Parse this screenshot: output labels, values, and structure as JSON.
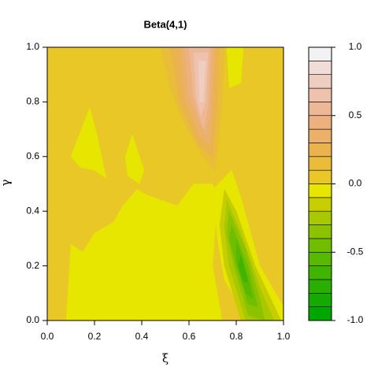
{
  "chart_data": {
    "type": "filled_contour",
    "title": "Beta(4,1)",
    "x_label": "ξ",
    "y_label": "γ",
    "xlim": [
      0,
      1
    ],
    "ylim": [
      0,
      1
    ],
    "xticks": [
      {
        "value": 0,
        "label": "0.0"
      },
      {
        "value": 0.2,
        "label": "0.2"
      },
      {
        "value": 0.4,
        "label": "0.4"
      },
      {
        "value": 0.6,
        "label": "0.6"
      },
      {
        "value": 0.8,
        "label": "0.8"
      },
      {
        "value": 1,
        "label": "1.0"
      }
    ],
    "yticks": [
      {
        "value": 0,
        "label": "0.0"
      },
      {
        "value": 0.2,
        "label": "0.2"
      },
      {
        "value": 0.4,
        "label": "0.4"
      },
      {
        "value": 0.6,
        "label": "0.6"
      },
      {
        "value": 0.8,
        "label": "0.8"
      },
      {
        "value": 1,
        "label": "1.0"
      }
    ],
    "zlim": [
      -1,
      1
    ],
    "zticks": [
      {
        "value": -1,
        "label": "-1.0"
      },
      {
        "value": -0.5,
        "label": "-0.5"
      },
      {
        "value": 0,
        "label": "0.0"
      },
      {
        "value": 0.5,
        "label": "0.5"
      },
      {
        "value": 1,
        "label": "1.0"
      }
    ],
    "zlevels": [
      -1.0,
      -0.9,
      -0.8,
      -0.7,
      -0.6,
      -0.5,
      -0.4,
      -0.3,
      -0.2,
      -0.1,
      0.0,
      0.1,
      0.2,
      0.3,
      0.4,
      0.5,
      0.6,
      0.7,
      0.8,
      0.9,
      1.0
    ],
    "colors": [
      "#00A600",
      "#14AA00",
      "#2AAF00",
      "#40B400",
      "#58B900",
      "#71BE00",
      "#8CC300",
      "#A8C800",
      "#C6CE00",
      "#E6E600",
      "#E8C727",
      "#E9BD3A",
      "#EAB34E",
      "#EBB06A",
      "#ECB17F",
      "#EDB896",
      "#EEC2AC",
      "#EFCEC2",
      "#F0DDD8",
      "#F2F2F2"
    ],
    "regions": [
      {
        "level": 0.0,
        "x": [
          0,
          1,
          1,
          0
        ],
        "y": [
          0,
          0,
          1,
          1
        ]
      },
      {
        "level": -0.1,
        "x": [
          0.08,
          0.1,
          0.15,
          0.2,
          0.28,
          0.32,
          0.38,
          0.42,
          0.55,
          0.62,
          0.7,
          0.72,
          0.7,
          0.74,
          0.42
        ],
        "y": [
          0,
          0.28,
          0.25,
          0.32,
          0.36,
          0.42,
          0.48,
          0.46,
          0.42,
          0.5,
          0.5,
          0.45,
          0.2,
          0,
          0
        ]
      },
      {
        "level": -0.1,
        "x": [
          0.1,
          0.18,
          0.21,
          0.25,
          0.2,
          0.14
        ],
        "y": [
          0.6,
          0.78,
          0.68,
          0.52,
          0.55,
          0.56
        ]
      },
      {
        "level": -0.1,
        "x": [
          0.33,
          0.36,
          0.41,
          0.39,
          0.34
        ],
        "y": [
          0.6,
          0.68,
          0.55,
          0.5,
          0.53
        ]
      },
      {
        "level": -0.1,
        "x": [
          0.76,
          0.83,
          0.82,
          0.77
        ],
        "y": [
          1,
          1,
          0.87,
          0.85
        ]
      },
      {
        "level": -0.1,
        "x": [
          0.7,
          0.78,
          0.82,
          0.9,
          1,
          1,
          0.85,
          0.75,
          0.72
        ],
        "y": [
          0.48,
          0.55,
          0.45,
          0.2,
          0.05,
          0,
          0,
          0.15,
          0.3
        ]
      },
      {
        "level": -0.2,
        "x": [
          0.75,
          0.8,
          0.88,
          0.99,
          0.82,
          0.75,
          0.73
        ],
        "y": [
          0.48,
          0.4,
          0.2,
          0,
          0,
          0.2,
          0.35
        ]
      },
      {
        "level": -0.3,
        "x": [
          0.76,
          0.82,
          0.9,
          0.96,
          0.84,
          0.77,
          0.75
        ],
        "y": [
          0.44,
          0.32,
          0.12,
          0,
          0,
          0.2,
          0.34
        ]
      },
      {
        "level": -0.4,
        "x": [
          0.77,
          0.84,
          0.9,
          0.92,
          0.85,
          0.79,
          0.76
        ],
        "y": [
          0.4,
          0.26,
          0.08,
          0,
          0.02,
          0.2,
          0.32
        ]
      },
      {
        "level": -0.5,
        "x": [
          0.78,
          0.85,
          0.89,
          0.85,
          0.8,
          0.77
        ],
        "y": [
          0.35,
          0.2,
          0.05,
          0.06,
          0.2,
          0.3
        ]
      },
      {
        "level": -0.6,
        "x": [
          0.8,
          0.85,
          0.87,
          0.84,
          0.8
        ],
        "y": [
          0.3,
          0.16,
          0.08,
          0.1,
          0.22
        ]
      },
      {
        "level": -0.7,
        "x": [
          0.82,
          0.85,
          0.83,
          0.81
        ],
        "y": [
          0.24,
          0.14,
          0.14,
          0.2
        ]
      },
      {
        "level": 0.1,
        "x": [
          0.48,
          0.75,
          0.74,
          0.72,
          0.71,
          0.66,
          0.58,
          0.52
        ],
        "y": [
          1,
          1,
          0.8,
          0.62,
          0.55,
          0.6,
          0.72,
          0.85
        ]
      },
      {
        "level": 0.2,
        "x": [
          0.52,
          0.73,
          0.72,
          0.7,
          0.64,
          0.56
        ],
        "y": [
          1,
          1,
          0.8,
          0.6,
          0.64,
          0.8
        ]
      },
      {
        "level": 0.3,
        "x": [
          0.56,
          0.71,
          0.7,
          0.69,
          0.64,
          0.58
        ],
        "y": [
          1,
          1,
          0.8,
          0.64,
          0.68,
          0.82
        ]
      },
      {
        "level": 0.4,
        "x": [
          0.58,
          0.7,
          0.69,
          0.67,
          0.6
        ],
        "y": [
          1,
          1,
          0.78,
          0.68,
          0.82
        ]
      },
      {
        "level": 0.5,
        "x": [
          0.6,
          0.69,
          0.68,
          0.66,
          0.62
        ],
        "y": [
          1,
          1,
          0.78,
          0.7,
          0.82
        ]
      },
      {
        "level": 0.6,
        "x": [
          0.62,
          0.68,
          0.67,
          0.65,
          0.63
        ],
        "y": [
          0.98,
          0.98,
          0.8,
          0.75,
          0.82
        ]
      },
      {
        "level": 0.7,
        "x": [
          0.64,
          0.67,
          0.66,
          0.645
        ],
        "y": [
          0.95,
          0.95,
          0.8,
          0.8
        ]
      }
    ]
  }
}
